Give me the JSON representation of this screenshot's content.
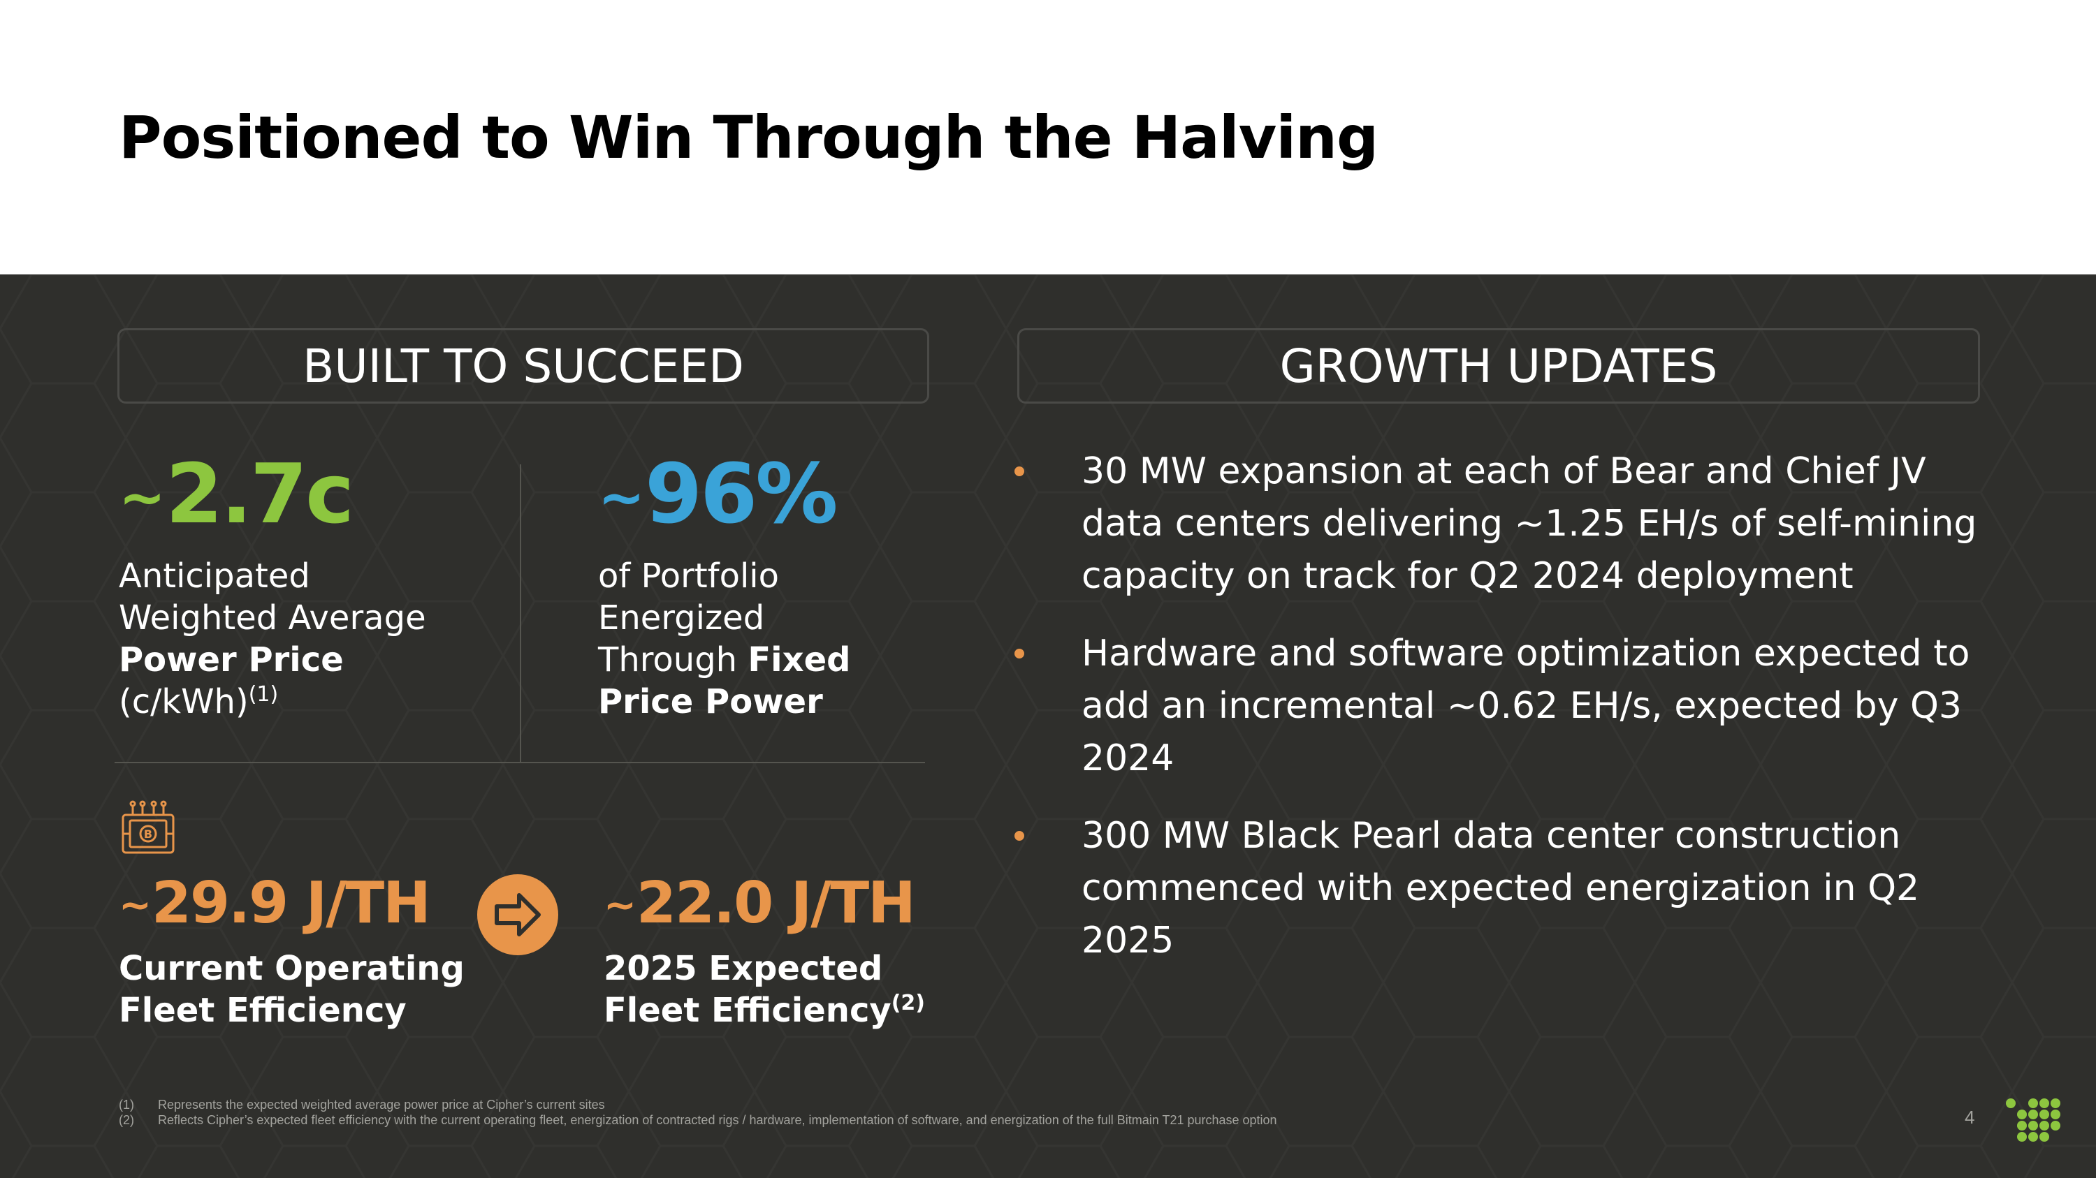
{
  "title": "Positioned to Win Through the Halving",
  "left_section": {
    "heading": "BUILT TO SUCCEED",
    "stat1": {
      "tilde": "~",
      "value": "2.7c",
      "color": "#8dc63f",
      "line1": "Anticipated",
      "line2": "Weighted Average",
      "line3_bold": "Power Price",
      "line4": "(c/kWh)",
      "footnote_ref": "(1)"
    },
    "stat2": {
      "tilde": "~",
      "value": "96%",
      "color": "#3aa3d8",
      "line1": "of Portfolio",
      "line2": "Energized",
      "line3": "Through ",
      "line3_bold": "Fixed",
      "line4_bold": "Price Power"
    },
    "efficiency": {
      "icon": "bitcoin-chip-icon",
      "arrow_icon": "arrow-right-icon",
      "current": {
        "tilde": "~",
        "value": "29.9 J/TH",
        "line1": "Current Operating",
        "line2": "Fleet Efficiency"
      },
      "expected": {
        "tilde": "~",
        "value": "22.0 J/TH",
        "line1": "2025 Expected",
        "line2": "Fleet Efficiency",
        "footnote_ref": "(2)"
      },
      "color": "#e8954a"
    }
  },
  "right_section": {
    "heading": "GROWTH UPDATES",
    "bullets": [
      "30 MW expansion at each of Bear and Chief JV data centers delivering ~1.25 EH/s of self-mining capacity on track for Q2 2024 deployment",
      "Hardware and software optimization expected to add an incremental ~0.62 EH/s, expected by Q3 2024",
      "300 MW Black Pearl data center construction commenced with expected energization in Q2 2025"
    ]
  },
  "footnotes": [
    {
      "num": "(1)",
      "text": "Represents the expected weighted average power price at Cipher’s current sites"
    },
    {
      "num": "(2)",
      "text": "Reflects Cipher’s expected fleet efficiency with the current operating fleet, energization of contracted rigs / hardware, implementation of software, and energization of the full Bitmain T21 purchase option"
    }
  ],
  "page_number": "4",
  "logo": "cipher-logo-icon"
}
